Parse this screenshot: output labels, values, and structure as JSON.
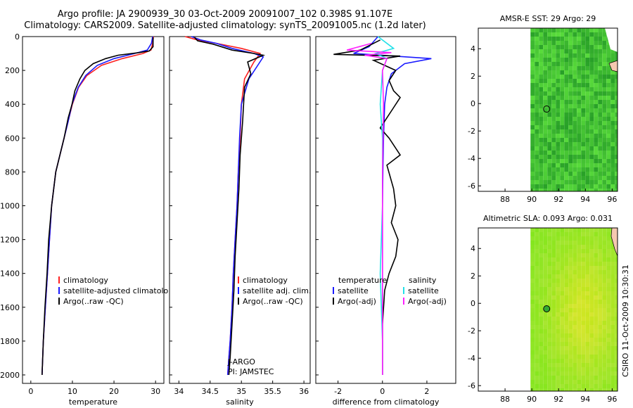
{
  "titles": {
    "line1": "Argo profile: JA 2900939_30 03-Oct-2009 20091007_102 0.398S 91.107E",
    "line2": "Climatology: CARS2009. Satellite-adjusted climatology: synTS_20091005.nc (1.2d later)"
  },
  "side_text": "CSIRO 11-Oct-2009 10:30:31",
  "colors": {
    "climatology": "#ff2020",
    "satellite": "#1a1aff",
    "argo": "#000000",
    "cyan": "#22e0e8",
    "magenta": "#ff20ff",
    "land": "#f5c8b0",
    "sea_green": "#44cc33",
    "sla_green": "#99ee22"
  },
  "chart_data": [
    {
      "type": "line",
      "id": "temperature",
      "xlabel": "temperature",
      "xlim": [
        -2,
        32
      ],
      "ylim": [
        2050,
        0
      ],
      "xticks": [
        0,
        10,
        20,
        30
      ],
      "yticks": [
        0,
        200,
        400,
        600,
        800,
        1000,
        1200,
        1400,
        1600,
        1800,
        2000
      ],
      "legend": [
        "climatology",
        "satellite-adjusted climatolo",
        "Argo(..raw -QC)"
      ],
      "series": [
        {
          "name": "climatology",
          "color": "climatology",
          "x": [
            29.5,
            29.3,
            28.9,
            27,
            22,
            17,
            13.5,
            11.5,
            10,
            9,
            8,
            7,
            6,
            5,
            4.5,
            4,
            3.5,
            3,
            2.7
          ],
          "y": [
            0,
            40,
            80,
            100,
            130,
            170,
            230,
            300,
            400,
            500,
            600,
            700,
            800,
            1000,
            1200,
            1400,
            1600,
            1800,
            2000
          ]
        },
        {
          "name": "satellite-adjusted climatolo",
          "color": "satellite",
          "x": [
            29.3,
            29.0,
            28.0,
            25,
            20,
            16,
            13.2,
            11.4,
            9.9,
            9,
            8,
            7,
            6,
            5,
            4.5,
            4,
            3.5,
            3,
            2.7
          ],
          "y": [
            0,
            40,
            80,
            100,
            130,
            170,
            230,
            300,
            400,
            500,
            600,
            700,
            800,
            1000,
            1200,
            1400,
            1600,
            1800,
            2000
          ]
        },
        {
          "name": "Argo(..raw -QC)",
          "color": "argo",
          "x": [
            29.4,
            29.4,
            28.5,
            26,
            21,
            18,
            15,
            13,
            11.8,
            10.6,
            9.9,
            9,
            8,
            7,
            6,
            5,
            4.3,
            3.9,
            3.4,
            3,
            2.7
          ],
          "y": [
            5,
            60,
            85,
            95,
            110,
            130,
            160,
            200,
            250,
            320,
            400,
            480,
            600,
            700,
            800,
            1000,
            1200,
            1400,
            1600,
            1800,
            2000
          ]
        }
      ]
    },
    {
      "type": "line",
      "id": "salinity",
      "xlabel": "salinity",
      "xlim": [
        33.85,
        36.1
      ],
      "ylim": [
        2050,
        0
      ],
      "xticks": [
        34,
        34.5,
        35,
        35.5,
        36
      ],
      "legend": [
        "climatology",
        "satellite adj. clim.",
        "Argo(..raw -QC)"
      ],
      "annotations": [
        "J-ARGO",
        "PI: JAMSTEC"
      ],
      "series": [
        {
          "name": "climatology",
          "color": "climatology",
          "x": [
            34.1,
            34.3,
            34.6,
            35.0,
            35.3,
            35.2,
            35.05,
            35.0,
            34.98,
            34.95,
            34.93,
            34.9,
            34.87,
            34.85,
            34.82,
            34.8,
            34.78
          ],
          "y": [
            0,
            20,
            40,
            70,
            100,
            150,
            250,
            400,
            600,
            800,
            1000,
            1200,
            1400,
            1600,
            1800,
            1900,
            2000
          ]
        },
        {
          "name": "satellite adj. clim.",
          "color": "satellite",
          "x": [
            34.2,
            34.35,
            34.6,
            34.85,
            35.2,
            35.35,
            35.12,
            35.0,
            34.97,
            34.95,
            34.93,
            34.9,
            34.87,
            34.85,
            34.82,
            34.8,
            34.78
          ],
          "y": [
            0,
            20,
            40,
            70,
            100,
            120,
            250,
            400,
            600,
            800,
            1000,
            1200,
            1400,
            1600,
            1800,
            1900,
            2000
          ]
        },
        {
          "name": "Argo(..raw -QC)",
          "color": "argo",
          "x": [
            34.25,
            34.3,
            34.55,
            34.85,
            35.2,
            35.35,
            35.1,
            35.15,
            35.05,
            35.02,
            34.98,
            34.96,
            34.93,
            34.9,
            34.88,
            34.85,
            34.82,
            34.8
          ],
          "y": [
            5,
            25,
            45,
            80,
            100,
            110,
            150,
            220,
            300,
            500,
            700,
            900,
            1100,
            1300,
            1500,
            1700,
            1900,
            2000
          ]
        }
      ]
    },
    {
      "type": "line",
      "id": "difference",
      "xlabel": "difference from climatology",
      "xlim": [
        -3,
        3.3
      ],
      "ylim": [
        2050,
        0
      ],
      "xticks": [
        -2,
        0,
        2
      ],
      "legend": [
        {
          "group": "temperature",
          "items": [
            "satellite",
            "Argo(-adj)"
          ]
        },
        {
          "group": "salinity",
          "items": [
            "satellite",
            "Argo(-adj)"
          ]
        }
      ],
      "series": [
        {
          "name": "temperature satellite",
          "color": "satellite",
          "x": [
            -0.2,
            -0.6,
            -1.3,
            0.5,
            2.2,
            1.0,
            0.4,
            0.2,
            0.1,
            0.05,
            0.02,
            0.0,
            0.0,
            0.0,
            0.0,
            0.0
          ],
          "y": [
            0,
            60,
            100,
            115,
            130,
            160,
            220,
            300,
            400,
            600,
            800,
            1000,
            1200,
            1400,
            1600,
            2000
          ]
        },
        {
          "name": "temperature Argo(-adj)",
          "color": "argo",
          "x": [
            -0.1,
            -1.0,
            -2.2,
            0.8,
            -0.4,
            0.6,
            0.3,
            0.5,
            0.8,
            0.5,
            0.2,
            -0.1,
            0.3,
            0.8,
            0.2,
            0.5,
            0.6,
            0.4,
            0.7,
            0.6,
            0.3,
            0.1,
            0.0,
            0.0
          ],
          "y": [
            20,
            80,
            105,
            115,
            140,
            200,
            260,
            320,
            360,
            420,
            480,
            540,
            600,
            700,
            760,
            900,
            1000,
            1100,
            1200,
            1300,
            1400,
            1500,
            1700,
            2000
          ]
        },
        {
          "name": "salinity satellite",
          "color": "cyan",
          "x": [
            -0.2,
            0.5,
            -0.3,
            0.2,
            0.0,
            -0.1,
            0.0,
            0.0,
            -0.1,
            0.0,
            0.0
          ],
          "y": [
            0,
            70,
            100,
            130,
            200,
            400,
            600,
            1000,
            1400,
            1800,
            2000
          ]
        },
        {
          "name": "salinity Argo(-adj)",
          "color": "magenta",
          "x": [
            -0.5,
            -1.6,
            0.4,
            -0.8,
            0.2,
            0.0,
            0.05,
            0.0,
            0.0
          ],
          "y": [
            40,
            80,
            95,
            110,
            130,
            200,
            400,
            800,
            2000
          ]
        }
      ]
    },
    {
      "type": "heatmap",
      "id": "sst-map",
      "title": "AMSR-E SST: 29 Argo: 29",
      "xlim": [
        86,
        96.4
      ],
      "ylim": [
        -6.4,
        5.5
      ],
      "xticks": [
        88,
        90,
        92,
        94,
        96
      ],
      "yticks": [
        -6,
        -4,
        -2,
        0,
        2,
        4
      ],
      "data_extent_x": [
        89.9,
        96.4
      ],
      "float_position": {
        "lon": 91.107,
        "lat": -0.398
      }
    },
    {
      "type": "heatmap",
      "id": "sla-map",
      "title": "Altimetric SLA: 0.093 Argo: 0.031",
      "xlim": [
        86,
        96.4
      ],
      "ylim": [
        -6.4,
        5.5
      ],
      "xticks": [
        88,
        90,
        92,
        94,
        96
      ],
      "yticks": [
        -6,
        -4,
        -2,
        0,
        2,
        4
      ],
      "data_extent_x": [
        89.9,
        96.4
      ],
      "float_position": {
        "lon": 91.107,
        "lat": -0.398
      }
    }
  ]
}
